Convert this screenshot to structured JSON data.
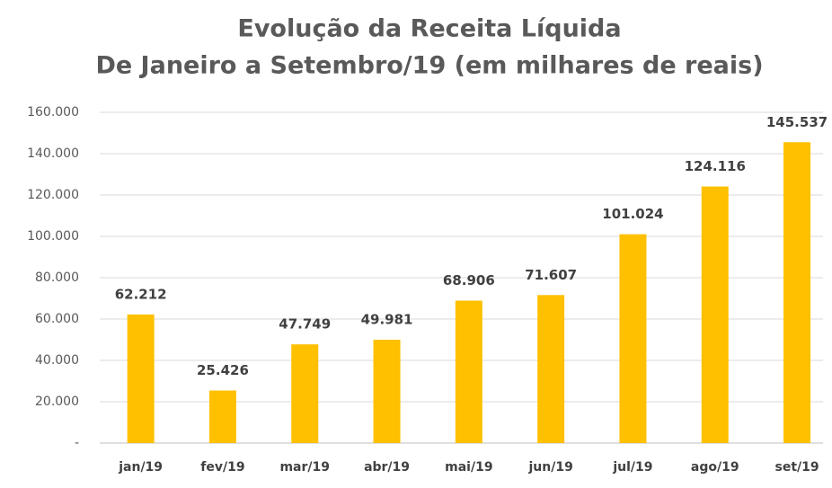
{
  "chart_data": {
    "type": "bar",
    "title": [
      "Evolução da Receita Líquida",
      "De Janeiro a Setembro/19 (em milhares de reais)"
    ],
    "categories": [
      "jan/19",
      "fev/19",
      "mar/19",
      "abr/19",
      "mai/19",
      "jun/19",
      "jul/19",
      "ago/19",
      "set/19"
    ],
    "values": [
      62212,
      25426,
      47749,
      49981,
      68906,
      71607,
      101024,
      124116,
      145537
    ],
    "value_labels": [
      "62.212",
      "25.426",
      "47.749",
      "49.981",
      "68.906",
      "71.607",
      "101.024",
      "124.116",
      "145.537"
    ],
    "color": "#ffc000",
    "ylim": [
      0,
      160000
    ],
    "yticks": [
      {
        "value": 0,
        "label": "-"
      },
      {
        "value": 20000,
        "label": "20.000"
      },
      {
        "value": 40000,
        "label": "40.000"
      },
      {
        "value": 60000,
        "label": "60.000"
      },
      {
        "value": 80000,
        "label": "80.000"
      },
      {
        "value": 100000,
        "label": "100.000"
      },
      {
        "value": 120000,
        "label": "120.000"
      },
      {
        "value": 140000,
        "label": "140.000"
      },
      {
        "value": 160000,
        "label": "160.000"
      }
    ],
    "grid": true
  }
}
